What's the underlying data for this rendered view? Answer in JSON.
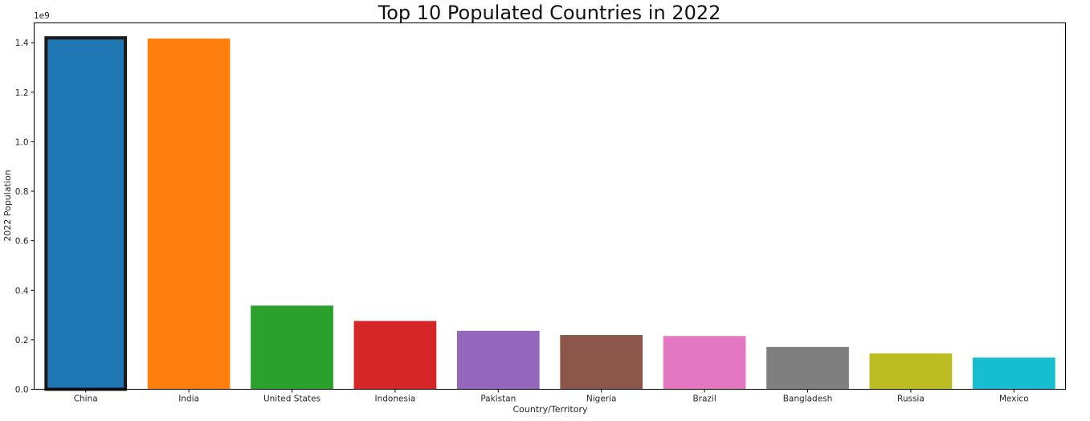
{
  "chart_data": {
    "type": "bar",
    "title": "Top 10 Populated Countries in 2022",
    "xlabel": "Country/Territory",
    "ylabel": "2022 Population",
    "y_offset_label": "1e9",
    "y_scale": 1000000000,
    "ylim": [
      0,
      1.48
    ],
    "yticks": [
      0.0,
      0.2,
      0.4,
      0.6,
      0.8,
      1.0,
      1.2,
      1.4
    ],
    "ytick_labels": [
      "0.0",
      "0.2",
      "0.4",
      "0.6",
      "0.8",
      "1.0",
      "1.2",
      "1.4"
    ],
    "categories": [
      "China",
      "India",
      "United States",
      "Indonesia",
      "Pakistan",
      "Nigeria",
      "Brazil",
      "Bangladesh",
      "Russia",
      "Mexico"
    ],
    "values": [
      1.426,
      1.417,
      0.338,
      0.276,
      0.236,
      0.219,
      0.215,
      0.171,
      0.145,
      0.128
    ],
    "colors": [
      "#1f77b4",
      "#ff7f0e",
      "#2ca02c",
      "#d62728",
      "#9467bd",
      "#8c564b",
      "#e377c2",
      "#7f7f7f",
      "#bcbd22",
      "#17becf"
    ],
    "highlighted_category": "China",
    "highlight_color": "#1a1a1a",
    "grid": false,
    "legend": "none"
  }
}
